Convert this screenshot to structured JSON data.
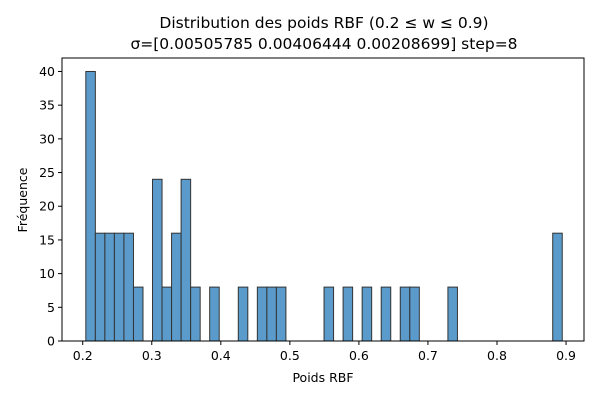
{
  "chart_data": {
    "type": "bar",
    "title": "Distribution des poids RBF (0.2 ≤ w ≤ 0.9)",
    "subtitle": "σ=[0.00505785 0.00406444 0.00208699] step=8",
    "xlabel": "Poids RBF",
    "ylabel": "Fréquence",
    "xlim": [
      0.17,
      0.926
    ],
    "ylim": [
      0,
      42
    ],
    "grid": false,
    "bar_color": "#5b9bcb",
    "edge_color": "#333333",
    "bin_width": 0.0138,
    "x_ticks": [
      {
        "value": 0.2,
        "label": "0.2"
      },
      {
        "value": 0.3,
        "label": "0.3"
      },
      {
        "value": 0.4,
        "label": "0.4"
      },
      {
        "value": 0.5,
        "label": "0.5"
      },
      {
        "value": 0.6,
        "label": "0.6"
      },
      {
        "value": 0.7,
        "label": "0.7"
      },
      {
        "value": 0.8,
        "label": "0.8"
      },
      {
        "value": 0.9,
        "label": "0.9"
      }
    ],
    "y_ticks": [
      {
        "value": 0,
        "label": "0"
      },
      {
        "value": 5,
        "label": "5"
      },
      {
        "value": 10,
        "label": "10"
      },
      {
        "value": 15,
        "label": "15"
      },
      {
        "value": 20,
        "label": "20"
      },
      {
        "value": 25,
        "label": "25"
      },
      {
        "value": 30,
        "label": "30"
      },
      {
        "value": 35,
        "label": "35"
      },
      {
        "value": 40,
        "label": "40"
      }
    ],
    "bins": [
      {
        "x": 0.2045,
        "count": 40
      },
      {
        "x": 0.2183,
        "count": 16
      },
      {
        "x": 0.2321,
        "count": 16
      },
      {
        "x": 0.2459,
        "count": 16
      },
      {
        "x": 0.2597,
        "count": 16
      },
      {
        "x": 0.2735,
        "count": 8
      },
      {
        "x": 0.3011,
        "count": 24
      },
      {
        "x": 0.3149,
        "count": 8
      },
      {
        "x": 0.3287,
        "count": 16
      },
      {
        "x": 0.3425,
        "count": 24
      },
      {
        "x": 0.3563,
        "count": 8
      },
      {
        "x": 0.3839,
        "count": 8
      },
      {
        "x": 0.4253,
        "count": 8
      },
      {
        "x": 0.4529,
        "count": 8
      },
      {
        "x": 0.4667,
        "count": 8
      },
      {
        "x": 0.4805,
        "count": 8
      },
      {
        "x": 0.5495,
        "count": 8
      },
      {
        "x": 0.5771,
        "count": 8
      },
      {
        "x": 0.6047,
        "count": 8
      },
      {
        "x": 0.6323,
        "count": 8
      },
      {
        "x": 0.6599,
        "count": 8
      },
      {
        "x": 0.6737,
        "count": 8
      },
      {
        "x": 0.7289,
        "count": 8
      },
      {
        "x": 0.8807,
        "count": 16
      }
    ]
  }
}
